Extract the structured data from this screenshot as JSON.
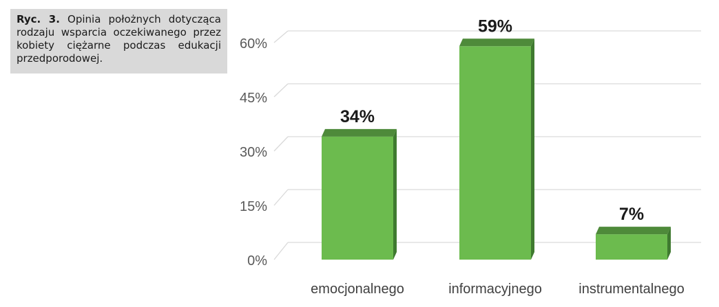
{
  "caption": {
    "label": "Ryc. 3.",
    "text": "Opinia położnych dotycząca rodzaju wsparcia oczekiwanego przez kobiety ciężarne podczas edukacji przedporodowej."
  },
  "chart_data": {
    "type": "bar",
    "categories": [
      "emocjonalnego",
      "informacyjnego",
      "instrumentalnego"
    ],
    "values": [
      34,
      59,
      7
    ],
    "data_labels": [
      "34%",
      "59%",
      "7%"
    ],
    "y_ticks": [
      0,
      15,
      30,
      45,
      60
    ],
    "y_tick_labels": [
      "0%",
      "15%",
      "30%",
      "45%",
      "60%"
    ],
    "ylim": [
      0,
      60
    ],
    "grid": true,
    "legend": "none",
    "style": "3d",
    "bar_color": "#6cbb4e",
    "bar_top_color": "#4e8a3a",
    "bar_side_color": "#3f7a30",
    "grid_color": "#d9d9d9"
  }
}
